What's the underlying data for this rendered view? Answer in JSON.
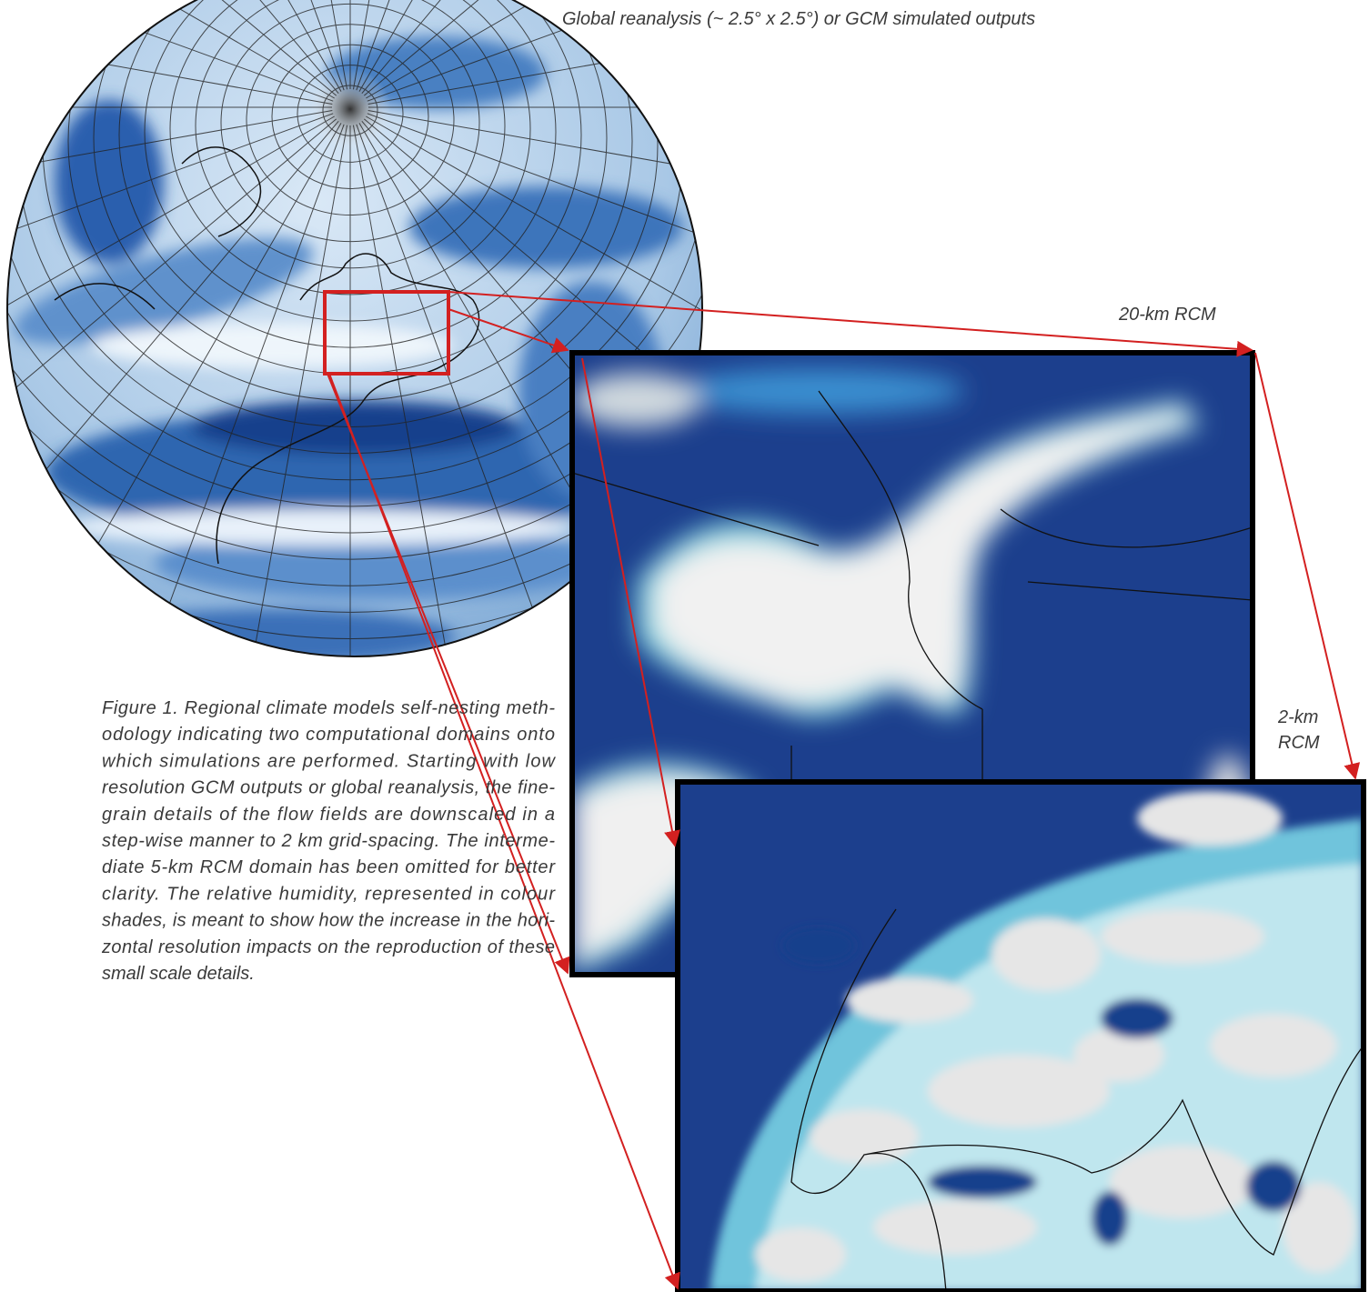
{
  "figure": {
    "labels": {
      "global": "Global reanalysis (~ 2.5° x 2.5°) or GCM simulated outputs",
      "rcm20": "20-km RCM",
      "rcm2": [
        "2-km",
        "RCM"
      ]
    },
    "caption": [
      "Figure 1. Regional climate models self-nesting meth-",
      "odology indicating two computational domains onto",
      "which simulations are performed. Starting with low",
      "resolution GCM outputs or global reanalysis, the fine-",
      "grain details of the flow fields are downscaled in a",
      "step-wise manner to 2 km grid-spacing. The interme-",
      "diate 5-km RCM domain has been omitted for better",
      "clarity. The relative humidity, represented in colour",
      "shades, is meant to show how the increase in the hori-",
      "zontal resolution impacts on the reproduction of these",
      "small scale details."
    ]
  }
}
